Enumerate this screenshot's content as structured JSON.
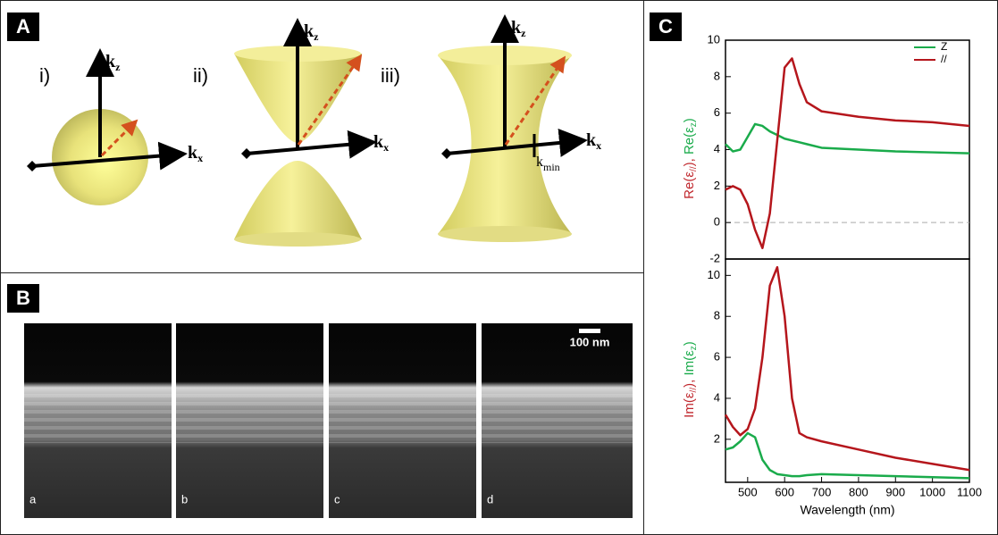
{
  "panel_a": {
    "label": "A",
    "subfigures": [
      {
        "label": "i)",
        "axes": [
          {
            "base": "k",
            "sub": "z"
          },
          {
            "base": "k",
            "sub": "x"
          }
        ]
      },
      {
        "label": "ii)",
        "axes": [
          {
            "base": "k",
            "sub": "z"
          },
          {
            "base": "k",
            "sub": "x"
          }
        ]
      },
      {
        "label": "iii)",
        "axes": [
          {
            "base": "k",
            "sub": "z"
          },
          {
            "base": "k",
            "sub": "x"
          },
          {
            "base": "k",
            "sub": "min"
          }
        ]
      }
    ]
  },
  "panel_b": {
    "label": "B",
    "scale_bar": "100 nm",
    "images": [
      "a",
      "b",
      "c",
      "d"
    ]
  },
  "panel_c": {
    "label": "C"
  },
  "chart_data": [
    {
      "type": "line",
      "x": [
        440,
        460,
        480,
        500,
        520,
        540,
        560,
        580,
        600,
        620,
        640,
        660,
        700,
        800,
        900,
        1000,
        1100
      ],
      "series": [
        {
          "name": "Z",
          "color": "#1aab4b",
          "values": [
            4.3,
            3.9,
            4.0,
            4.7,
            5.4,
            5.3,
            5.0,
            4.8,
            4.6,
            4.5,
            4.4,
            4.3,
            4.1,
            4.0,
            3.9,
            3.85,
            3.8
          ]
        },
        {
          "name": "//",
          "color": "#b5161c",
          "values": [
            1.8,
            2.0,
            1.8,
            1.0,
            -0.4,
            -1.4,
            0.5,
            4.5,
            8.5,
            9.0,
            7.6,
            6.6,
            6.1,
            5.8,
            5.6,
            5.5,
            5.3
          ]
        }
      ],
      "ylabel": [
        {
          "text": "Re(ε",
          "color": "#c0272d"
        },
        {
          "text": "//",
          "sub": true,
          "color": "#c0272d"
        },
        {
          "text": "), ",
          "color": "#c0272d"
        },
        {
          "text": "Re(ε",
          "color": "#1aab4b"
        },
        {
          "text": "z",
          "sub": true,
          "color": "#1aab4b"
        },
        {
          "text": ")",
          "color": "#1aab4b"
        }
      ],
      "xlim": [
        440,
        1100
      ],
      "ylim": [
        -2,
        10
      ],
      "yticks": [
        -2,
        0,
        2,
        4,
        6,
        8,
        10
      ],
      "hline": 0,
      "legend": "upper right"
    },
    {
      "type": "line",
      "x": [
        440,
        460,
        480,
        500,
        520,
        540,
        560,
        580,
        600,
        620,
        640,
        660,
        700,
        800,
        900,
        1000,
        1100
      ],
      "series": [
        {
          "name": "Z",
          "color": "#1aab4b",
          "values": [
            1.5,
            1.6,
            1.9,
            2.3,
            2.1,
            1.0,
            0.5,
            0.3,
            0.25,
            0.2,
            0.2,
            0.25,
            0.3,
            0.25,
            0.2,
            0.15,
            0.1
          ]
        },
        {
          "name": "//",
          "color": "#b5161c",
          "values": [
            3.2,
            2.6,
            2.2,
            2.5,
            3.5,
            6.0,
            9.5,
            10.4,
            8.0,
            4.0,
            2.3,
            2.1,
            1.9,
            1.5,
            1.1,
            0.8,
            0.5
          ]
        }
      ],
      "ylabel": [
        {
          "text": "Im(ε",
          "color": "#c0272d"
        },
        {
          "text": "//",
          "sub": true,
          "color": "#c0272d"
        },
        {
          "text": "), ",
          "color": "#c0272d"
        },
        {
          "text": "Im(ε",
          "color": "#1aab4b"
        },
        {
          "text": "z",
          "sub": true,
          "color": "#1aab4b"
        },
        {
          "text": ")",
          "color": "#1aab4b"
        }
      ],
      "xlabel": "Wavelength (nm)",
      "xlim": [
        440,
        1100
      ],
      "ylim": [
        -0.1,
        10.8
      ],
      "xticks": [
        500,
        600,
        700,
        800,
        900,
        1000,
        1100
      ],
      "yticks": [
        2,
        4,
        6,
        8,
        10
      ]
    }
  ]
}
